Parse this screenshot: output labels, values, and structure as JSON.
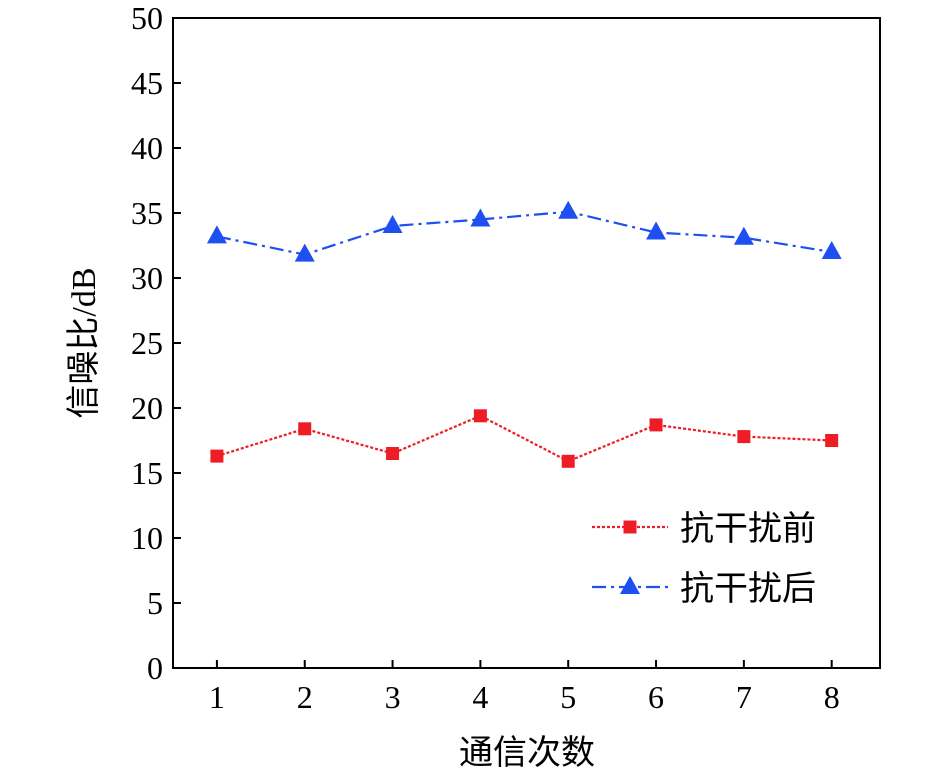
{
  "chart_data": {
    "type": "line",
    "title": "",
    "xlabel": "通信次数",
    "ylabel": "信噪比/dB",
    "x": [
      1,
      2,
      3,
      4,
      5,
      6,
      7,
      8
    ],
    "xlim": [
      0.5,
      8.55
    ],
    "ylim": [
      0,
      50
    ],
    "xticks": [
      "1",
      "2",
      "3",
      "4",
      "5",
      "6",
      "7",
      "8"
    ],
    "yticks": [
      "0",
      "5",
      "10",
      "15",
      "20",
      "25",
      "30",
      "35",
      "40",
      "45",
      "50"
    ],
    "grid": false,
    "legend_position": "bottom-right",
    "series": [
      {
        "name": "抗干扰前",
        "values": [
          16.3,
          18.4,
          16.5,
          19.4,
          15.9,
          18.7,
          17.8,
          17.5
        ],
        "color": "#ee1c25",
        "marker": "square",
        "line": "dotted"
      },
      {
        "name": "抗干扰后",
        "values": [
          33.2,
          31.8,
          34.0,
          34.5,
          35.1,
          33.5,
          33.1,
          32.0
        ],
        "color": "#1e4ff0",
        "marker": "triangle",
        "line": "dash-dot"
      }
    ]
  }
}
